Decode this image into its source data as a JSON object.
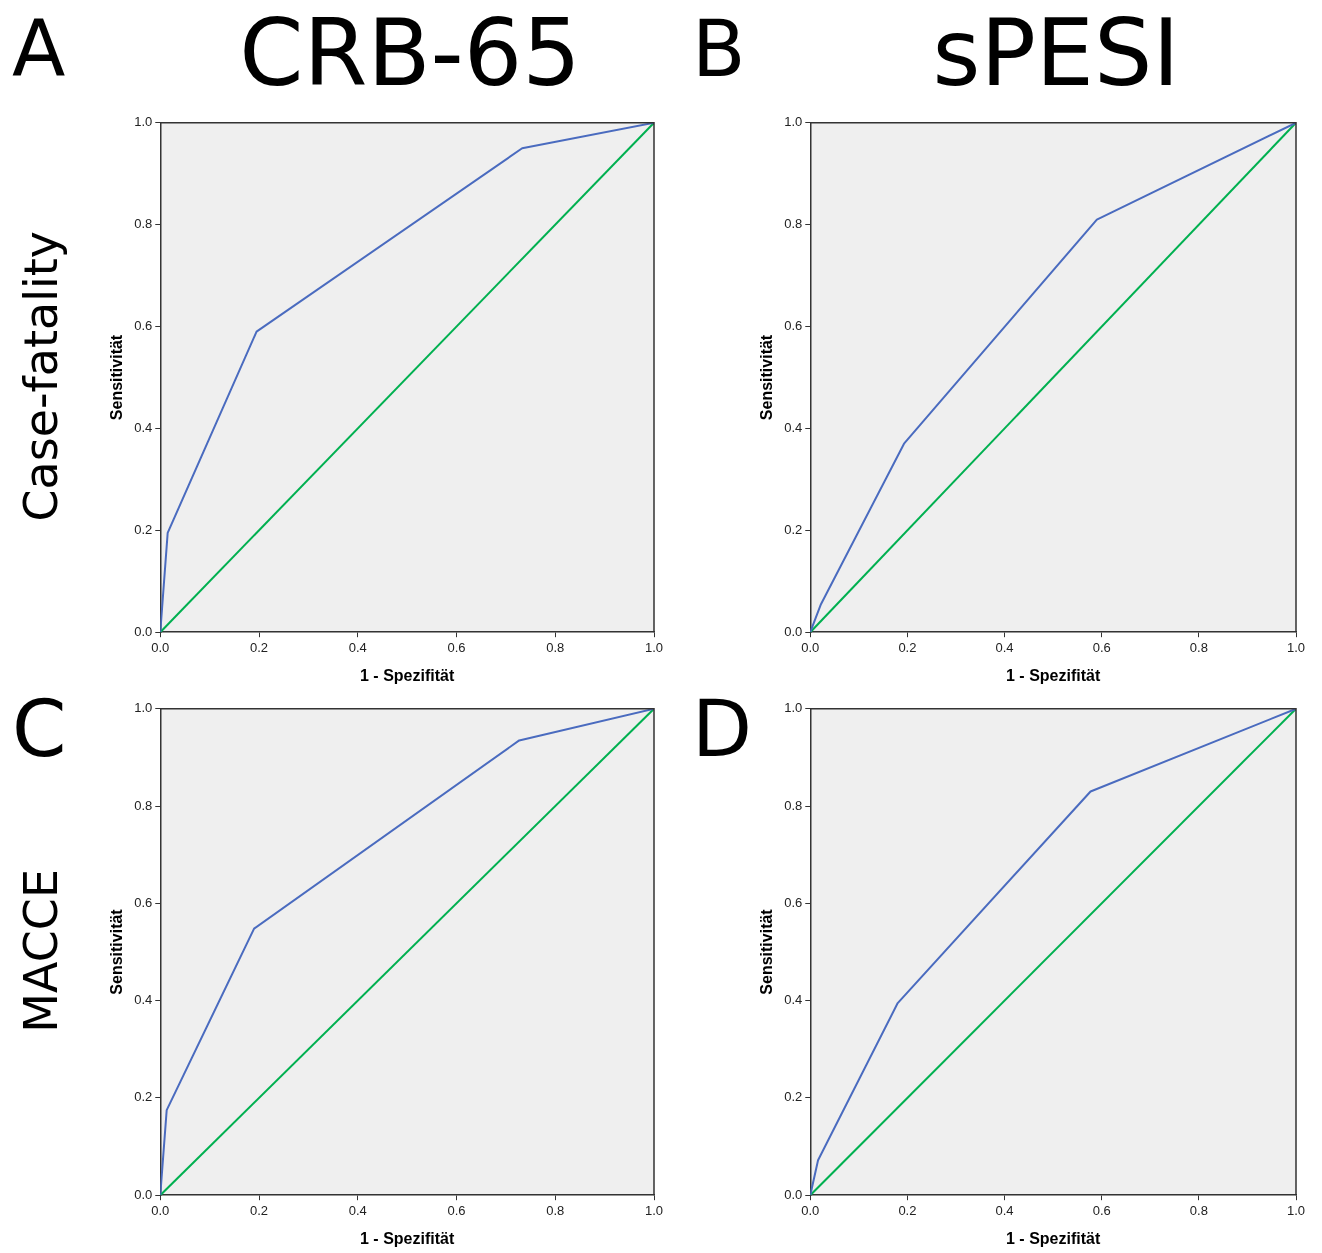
{
  "chart_data": [
    {
      "type": "line",
      "title": "CRB-65",
      "annotations": [
        "A",
        "Case-fatality"
      ],
      "xlabel": "1 - Spezifität",
      "ylabel": "Sensitivität",
      "xlim": [
        0,
        1
      ],
      "ylim": [
        0,
        1
      ],
      "xticks": [
        {
          "value": 0,
          "label": "0.0"
        },
        {
          "value": 0.2,
          "label": "0.2"
        },
        {
          "value": 0.4,
          "label": "0.4"
        },
        {
          "value": 0.6,
          "label": "0.6"
        },
        {
          "value": 0.8,
          "label": "0.8"
        },
        {
          "value": 1,
          "label": "1.0"
        }
      ],
      "yticks": [
        {
          "value": 0,
          "label": "0.0"
        },
        {
          "value": 0.2,
          "label": "0.2"
        },
        {
          "value": 0.4,
          "label": "0.4"
        },
        {
          "value": 0.6,
          "label": "0.6"
        },
        {
          "value": 0.8,
          "label": "0.8"
        },
        {
          "value": 1,
          "label": "1.0"
        }
      ],
      "series": [
        {
          "color": "#4a6bbf",
          "x": [
            0,
            0.015,
            0.195,
            0.733,
            1
          ],
          "values": [
            0,
            0.195,
            0.59,
            0.95,
            1
          ]
        },
        {
          "color": "#00b050",
          "x": [
            0,
            1
          ],
          "values": [
            0,
            1
          ]
        }
      ]
    },
    {
      "type": "line",
      "title": "sPESI",
      "annotations": [
        "B"
      ],
      "xlabel": "1 - Spezifität",
      "ylabel": "Sensitivität",
      "xlim": [
        0,
        1
      ],
      "ylim": [
        0,
        1
      ],
      "xticks": [
        {
          "value": 0,
          "label": "0.0"
        },
        {
          "value": 0.2,
          "label": "0.2"
        },
        {
          "value": 0.4,
          "label": "0.4"
        },
        {
          "value": 0.6,
          "label": "0.6"
        },
        {
          "value": 0.8,
          "label": "0.8"
        },
        {
          "value": 1,
          "label": "1.0"
        }
      ],
      "yticks": [
        {
          "value": 0,
          "label": "0.0"
        },
        {
          "value": 0.2,
          "label": "0.2"
        },
        {
          "value": 0.4,
          "label": "0.4"
        },
        {
          "value": 0.6,
          "label": "0.6"
        },
        {
          "value": 0.8,
          "label": "0.8"
        },
        {
          "value": 1,
          "label": "1.0"
        }
      ],
      "series": [
        {
          "color": "#4a6bbf",
          "x": [
            0,
            0.022,
            0.193,
            0.59,
            1
          ],
          "values": [
            0,
            0.055,
            0.37,
            0.81,
            1
          ]
        },
        {
          "color": "#00b050",
          "x": [
            0,
            1
          ],
          "values": [
            0,
            1
          ]
        }
      ]
    },
    {
      "type": "line",
      "annotations": [
        "C",
        "MACCE"
      ],
      "xlabel": "1 - Spezifität",
      "ylabel": "Sensitivität",
      "xlim": [
        0,
        1
      ],
      "ylim": [
        0,
        1
      ],
      "xticks": [
        {
          "value": 0,
          "label": "0.0"
        },
        {
          "value": 0.2,
          "label": "0.2"
        },
        {
          "value": 0.4,
          "label": "0.4"
        },
        {
          "value": 0.6,
          "label": "0.6"
        },
        {
          "value": 0.8,
          "label": "0.8"
        },
        {
          "value": 1,
          "label": "1.0"
        }
      ],
      "yticks": [
        {
          "value": 0,
          "label": "0.0"
        },
        {
          "value": 0.2,
          "label": "0.2"
        },
        {
          "value": 0.4,
          "label": "0.4"
        },
        {
          "value": 0.6,
          "label": "0.6"
        },
        {
          "value": 0.8,
          "label": "0.8"
        },
        {
          "value": 1,
          "label": "1.0"
        }
      ],
      "series": [
        {
          "color": "#4a6bbf",
          "x": [
            0,
            0.013,
            0.19,
            0.727,
            1
          ],
          "values": [
            0,
            0.175,
            0.548,
            0.935,
            1
          ]
        },
        {
          "color": "#00b050",
          "x": [
            0,
            1
          ],
          "values": [
            0,
            1
          ]
        }
      ]
    },
    {
      "type": "line",
      "annotations": [
        "D"
      ],
      "xlabel": "1 - Spezifität",
      "ylabel": "Sensitivität",
      "xlim": [
        0,
        1
      ],
      "ylim": [
        0,
        1
      ],
      "xticks": [
        {
          "value": 0,
          "label": "0.0"
        },
        {
          "value": 0.2,
          "label": "0.2"
        },
        {
          "value": 0.4,
          "label": "0.4"
        },
        {
          "value": 0.6,
          "label": "0.6"
        },
        {
          "value": 0.8,
          "label": "0.8"
        },
        {
          "value": 1,
          "label": "1.0"
        }
      ],
      "yticks": [
        {
          "value": 0,
          "label": "0.0"
        },
        {
          "value": 0.2,
          "label": "0.2"
        },
        {
          "value": 0.4,
          "label": "0.4"
        },
        {
          "value": 0.6,
          "label": "0.6"
        },
        {
          "value": 0.8,
          "label": "0.8"
        },
        {
          "value": 1,
          "label": "1.0"
        }
      ],
      "series": [
        {
          "color": "#4a6bbf",
          "x": [
            0,
            0.016,
            0.18,
            0.577,
            1
          ],
          "values": [
            0,
            0.072,
            0.395,
            0.83,
            1
          ]
        },
        {
          "color": "#00b050",
          "x": [
            0,
            1
          ],
          "values": [
            0,
            1
          ]
        }
      ]
    }
  ]
}
